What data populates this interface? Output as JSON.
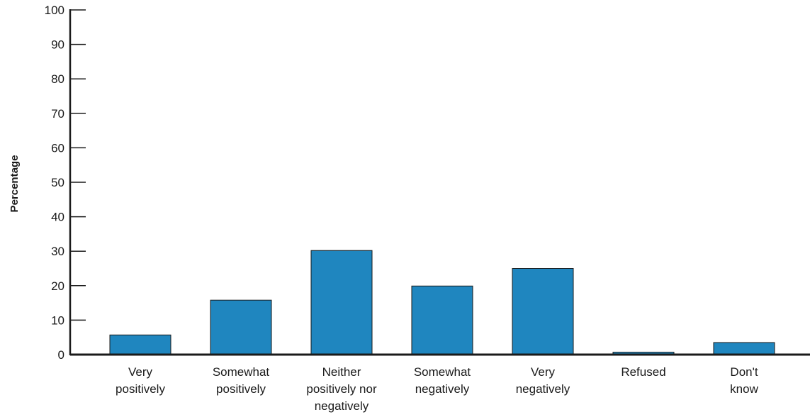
{
  "chart_data": {
    "type": "bar",
    "title": "",
    "xlabel": "",
    "ylabel": "Percentage",
    "ylim": [
      0,
      100
    ],
    "yticks": [
      0,
      10,
      20,
      30,
      40,
      50,
      60,
      70,
      80,
      90,
      100
    ],
    "categories": [
      [
        "Very",
        "positively"
      ],
      [
        "Somewhat",
        "positively"
      ],
      [
        "Neither",
        "positively nor",
        "negatively"
      ],
      [
        "Somewhat",
        "negatively"
      ],
      [
        "Very",
        "negatively"
      ],
      [
        "Refused"
      ],
      [
        "Don't",
        "know"
      ]
    ],
    "values": [
      5.7,
      15.8,
      30.2,
      19.9,
      25.0,
      0.7,
      3.5
    ],
    "bar_color": "#1f86bf",
    "grid": false,
    "legend": "none"
  }
}
